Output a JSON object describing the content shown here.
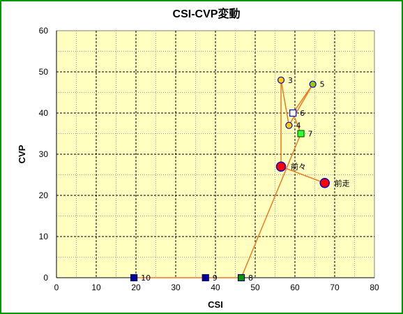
{
  "chart_data": {
    "type": "scatter",
    "title": "CSI-CVP変動",
    "xlabel": "CSI",
    "ylabel": "CVP",
    "xlim": [
      0,
      80
    ],
    "ylim": [
      0,
      60
    ],
    "xticks": [
      0,
      10,
      20,
      30,
      40,
      50,
      60,
      70,
      80
    ],
    "yticks": [
      0,
      10,
      20,
      30,
      40,
      50,
      60
    ],
    "grid": true,
    "colors": {
      "plot_background": "#ffffc0",
      "chart_border": "#009900",
      "path_line": "#f07820",
      "grid_major": "#000000"
    },
    "points": [
      {
        "label": "前走",
        "x": 67.5,
        "y": 23,
        "marker": "circle-large",
        "fill": "#ff0000",
        "stroke": "#0000cc"
      },
      {
        "label": "前々",
        "x": 56.5,
        "y": 27,
        "marker": "circle-large",
        "fill": "#ff0000",
        "stroke": "#0000cc"
      },
      {
        "label": "3",
        "x": 56.5,
        "y": 48,
        "marker": "circle",
        "fill": "#ffcc00",
        "stroke": "#0000cc"
      },
      {
        "label": "4",
        "x": 58.5,
        "y": 37,
        "marker": "circle",
        "fill": "#ffcc00",
        "stroke": "#0000cc"
      },
      {
        "label": "5",
        "x": 64.5,
        "y": 47,
        "marker": "circle",
        "fill": "#99cc00",
        "stroke": "#0000cc"
      },
      {
        "label": "6",
        "x": 59.5,
        "y": 40,
        "marker": "square",
        "fill": "#ffffff",
        "stroke": "#0000cc"
      },
      {
        "label": "7",
        "x": 61.5,
        "y": 35,
        "marker": "square",
        "fill": "#33ff33",
        "stroke": "#006600"
      },
      {
        "label": "8",
        "x": 46.5,
        "y": 0,
        "marker": "square",
        "fill": "#009900",
        "stroke": "#000066"
      },
      {
        "label": "9",
        "x": 37.5,
        "y": 0,
        "marker": "square",
        "fill": "#000099",
        "stroke": "#000066"
      },
      {
        "label": "10",
        "x": 19.5,
        "y": 0,
        "marker": "square",
        "fill": "#000099",
        "stroke": "#000066"
      }
    ]
  }
}
